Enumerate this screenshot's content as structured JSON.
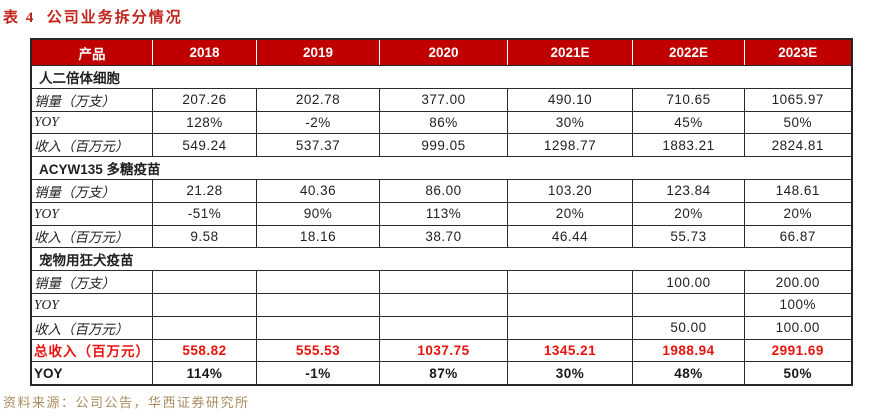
{
  "title": "表 4  公司业务拆分情况",
  "source_note": "资料来源：公司公告，华西证券研究所",
  "colors": {
    "header_bg": "#c00000",
    "title_red": "#c0241c",
    "total_red": "#e8120c",
    "source_tan": "#ab8b5e",
    "border": "#2b2b2b"
  },
  "chart_data": {
    "type": "table",
    "title": "表 4  公司业务拆分情况",
    "columns": [
      "产品",
      "2018",
      "2019",
      "2020",
      "2021E",
      "2022E",
      "2023E"
    ],
    "rows": [
      {
        "type": "section",
        "label": "人二倍体细胞",
        "values": [
          "",
          "",
          "",
          "",
          "",
          ""
        ]
      },
      {
        "type": "metric",
        "label": "销量（万支）",
        "values": [
          "207.26",
          "202.78",
          "377.00",
          "490.10",
          "710.65",
          "1065.97"
        ]
      },
      {
        "type": "metric",
        "label": "YOY",
        "values": [
          "128%",
          "-2%",
          "86%",
          "30%",
          "45%",
          "50%"
        ]
      },
      {
        "type": "metric",
        "label": "收入（百万元）",
        "values": [
          "549.24",
          "537.37",
          "999.05",
          "1298.77",
          "1883.21",
          "2824.81"
        ]
      },
      {
        "type": "section",
        "label": "ACYW135 多糖疫苗",
        "values": [
          "",
          "",
          "",
          "",
          "",
          ""
        ]
      },
      {
        "type": "metric",
        "label": "销量（万支）",
        "values": [
          "21.28",
          "40.36",
          "86.00",
          "103.20",
          "123.84",
          "148.61"
        ]
      },
      {
        "type": "metric",
        "label": "YOY",
        "values": [
          "-51%",
          "90%",
          "113%",
          "20%",
          "20%",
          "20%"
        ]
      },
      {
        "type": "metric",
        "label": "收入（百万元）",
        "values": [
          "9.58",
          "18.16",
          "38.70",
          "46.44",
          "55.73",
          "66.87"
        ]
      },
      {
        "type": "section",
        "label": "宠物用狂犬疫苗",
        "values": [
          "",
          "",
          "",
          "",
          "",
          ""
        ]
      },
      {
        "type": "metric",
        "label": "销量（万支）",
        "values": [
          "",
          "",
          "",
          "",
          "100.00",
          "200.00"
        ]
      },
      {
        "type": "metric",
        "label": "YOY",
        "values": [
          "",
          "",
          "",
          "",
          "",
          "100%"
        ]
      },
      {
        "type": "metric",
        "label": "收入（百万元）",
        "values": [
          "",
          "",
          "",
          "",
          "50.00",
          "100.00"
        ]
      },
      {
        "type": "total",
        "label": "总收入（百万元）",
        "values": [
          "558.82",
          "555.53",
          "1037.75",
          "1345.21",
          "1988.94",
          "2991.69"
        ]
      },
      {
        "type": "total_yoy",
        "label": "YOY",
        "values": [
          "114%",
          "-1%",
          "87%",
          "30%",
          "48%",
          "50%"
        ]
      }
    ]
  }
}
